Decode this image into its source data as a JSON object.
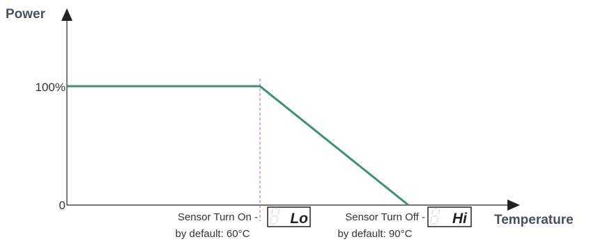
{
  "chart_data": {
    "type": "line",
    "ylabel": "Power",
    "xlabel": "Temperature",
    "y_ticks": [
      "100%",
      "0"
    ],
    "series": [
      {
        "color": "#3f8f73",
        "points": [
          {
            "x": "start",
            "y": 100
          },
          {
            "x": "Sensor Turn On",
            "y": 100
          },
          {
            "x": "Sensor Turn Off",
            "y": 0
          }
        ]
      }
    ],
    "markers": [
      {
        "label_line1": "Sensor Turn On -",
        "label_line2": "by default: 60°C",
        "display": "Lo",
        "line_style": "dashed",
        "line_color": "#9b5fc0"
      },
      {
        "label_line1": "Sensor Turn Off -",
        "label_line2": "by default: 90°C",
        "display": "Hi"
      }
    ],
    "grid": false,
    "legend": "none"
  },
  "colors": {
    "line": "#3f8f73",
    "axis": "#222222",
    "axis_title": "#4a4f63",
    "marker_line": "#9b5fc0"
  }
}
